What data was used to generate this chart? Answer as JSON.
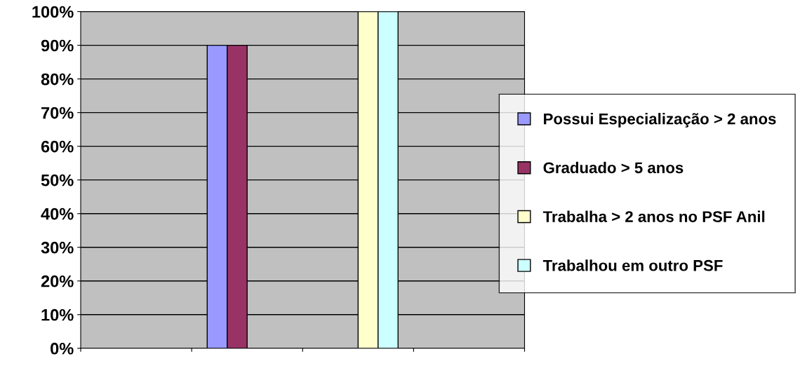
{
  "chart_data": {
    "type": "bar",
    "categories": [
      null,
      null,
      null,
      null
    ],
    "series": [
      {
        "name": "Possui Especialização > 2 anos",
        "color": "#9999ff",
        "values": [
          null,
          90,
          null,
          null
        ]
      },
      {
        "name": "Graduado > 5 anos",
        "color": "#993366",
        "values": [
          null,
          90,
          null,
          null
        ]
      },
      {
        "name": "Trabalha > 2 anos no PSF Anil",
        "color": "#ffffcc",
        "values": [
          null,
          null,
          100,
          null
        ]
      },
      {
        "name": "Trabalhou em outro PSF",
        "color": "#ccffff",
        "values": [
          null,
          null,
          100,
          null
        ]
      }
    ],
    "ylim": [
      0,
      100
    ],
    "yticks": [
      {
        "value": 0,
        "label": "0%"
      },
      {
        "value": 10,
        "label": "10%"
      },
      {
        "value": 20,
        "label": "20%"
      },
      {
        "value": 30,
        "label": "30%"
      },
      {
        "value": 40,
        "label": "40%"
      },
      {
        "value": 50,
        "label": "50%"
      },
      {
        "value": 60,
        "label": "60%"
      },
      {
        "value": 70,
        "label": "70%"
      },
      {
        "value": 80,
        "label": "80%"
      },
      {
        "value": 90,
        "label": "90%"
      },
      {
        "value": 100,
        "label": "100%"
      }
    ],
    "grid": "y",
    "legend": "right"
  }
}
